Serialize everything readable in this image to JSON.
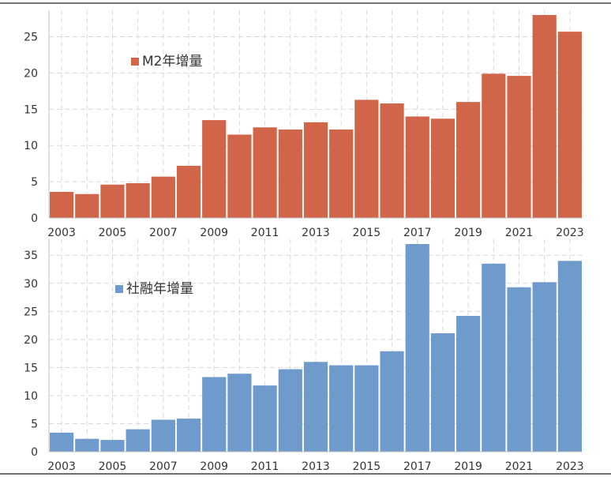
{
  "chart_data": [
    {
      "type": "bar",
      "categories": [
        "2003",
        "2004",
        "2005",
        "2006",
        "2007",
        "2008",
        "2009",
        "2010",
        "2011",
        "2012",
        "2013",
        "2014",
        "2015",
        "2016",
        "2017",
        "2018",
        "2019",
        "2020",
        "2021",
        "2022",
        "2023"
      ],
      "x_tick_labels": [
        "2003",
        "2005",
        "2007",
        "2009",
        "2011",
        "2013",
        "2015",
        "2017",
        "2019",
        "2021",
        "2023"
      ],
      "series": [
        {
          "name": "M2年增量",
          "color": "#d0654a",
          "values": [
            3.6,
            3.3,
            4.6,
            4.8,
            5.7,
            7.2,
            13.5,
            11.5,
            12.5,
            12.2,
            13.2,
            12.2,
            16.3,
            15.8,
            14.0,
            13.7,
            16.0,
            19.9,
            19.6,
            28.0,
            25.7
          ]
        }
      ],
      "ylim": [
        0,
        28
      ],
      "yticks": [
        0,
        5,
        10,
        15,
        20,
        25
      ],
      "grid": true,
      "legend_position": "upper-left"
    },
    {
      "type": "bar",
      "categories": [
        "2003",
        "2004",
        "2005",
        "2006",
        "2007",
        "2008",
        "2009",
        "2010",
        "2011",
        "2012",
        "2013",
        "2014",
        "2015",
        "2016",
        "2017",
        "2018",
        "2019",
        "2020",
        "2021",
        "2022",
        "2023"
      ],
      "x_tick_labels": [
        "2003",
        "2005",
        "2007",
        "2009",
        "2011",
        "2013",
        "2015",
        "2017",
        "2019",
        "2021",
        "2023"
      ],
      "series": [
        {
          "name": "社融年增量",
          "color": "#6f9acc",
          "values": [
            3.4,
            2.3,
            2.1,
            4.0,
            5.7,
            5.9,
            13.3,
            13.9,
            11.8,
            14.7,
            16.0,
            15.4,
            15.4,
            17.9,
            37.0,
            21.1,
            24.2,
            33.5,
            29.3,
            30.2,
            34.0
          ]
        }
      ],
      "ylim": [
        0,
        37
      ],
      "yticks": [
        0,
        5,
        10,
        15,
        20,
        25,
        30,
        35
      ],
      "grid": true,
      "legend_position": "upper-left"
    }
  ]
}
